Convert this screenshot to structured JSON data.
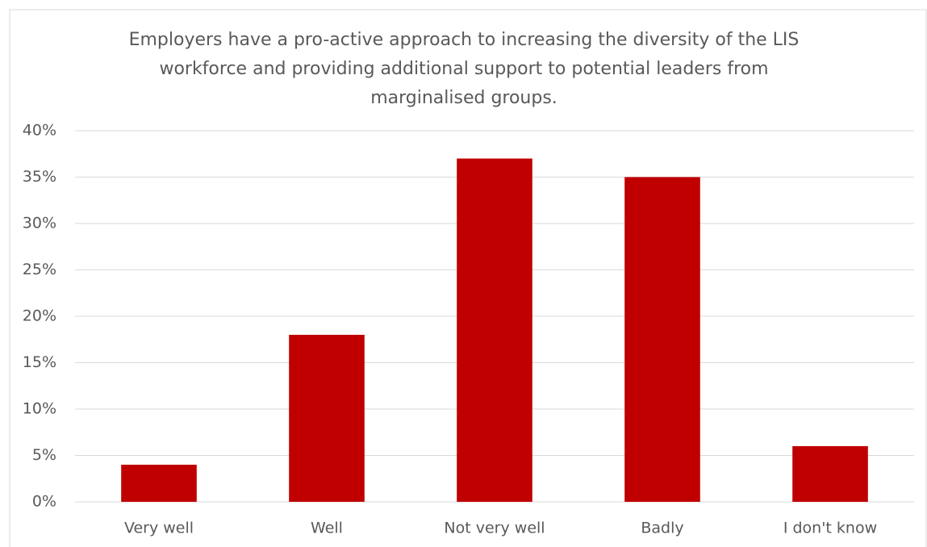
{
  "chart_data": {
    "type": "bar",
    "title": "Employers have a pro-active approach to increasing the diversity of the LIS workforce and providing additional support to potential leaders from marginalised groups.",
    "categories": [
      "Very well",
      "Well",
      "Not very well",
      "Badly",
      "I don't know"
    ],
    "values": [
      4,
      18,
      37,
      35,
      6
    ],
    "color": "#c00000",
    "ylim": [
      0,
      40
    ],
    "yticks": [
      {
        "value": 0,
        "label": "0%"
      },
      {
        "value": 5,
        "label": "5%"
      },
      {
        "value": 10,
        "label": "10%"
      },
      {
        "value": 15,
        "label": "15%"
      },
      {
        "value": 20,
        "label": "20%"
      },
      {
        "value": 25,
        "label": "25%"
      },
      {
        "value": 30,
        "label": "30%"
      },
      {
        "value": 35,
        "label": "35%"
      },
      {
        "value": 40,
        "label": "40%"
      }
    ],
    "grid": true
  }
}
